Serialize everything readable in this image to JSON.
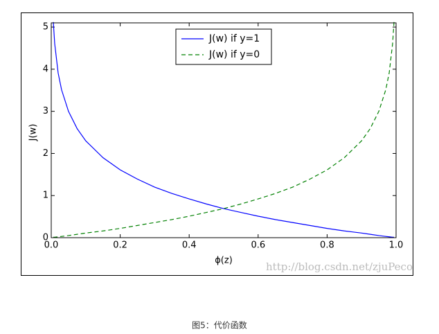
{
  "chart_data": {
    "type": "line",
    "xlabel": "ϕ(z)",
    "ylabel": "J(w)",
    "x": [
      0.006,
      0.01,
      0.02,
      0.03,
      0.05,
      0.075,
      0.1,
      0.15,
      0.2,
      0.25,
      0.3,
      0.35,
      0.4,
      0.45,
      0.5,
      0.55,
      0.6,
      0.65,
      0.7,
      0.75,
      0.8,
      0.85,
      0.9,
      0.925,
      0.95,
      0.97,
      0.98,
      0.99,
      0.994
    ],
    "series": [
      {
        "name": "J(w) if y=1",
        "color": "#0000ff",
        "dash": false,
        "values": [
          5.12,
          4.61,
          3.91,
          3.51,
          3.0,
          2.59,
          2.3,
          1.9,
          1.61,
          1.39,
          1.2,
          1.05,
          0.92,
          0.8,
          0.69,
          0.6,
          0.51,
          0.43,
          0.36,
          0.29,
          0.22,
          0.16,
          0.11,
          0.08,
          0.05,
          0.03,
          0.02,
          0.01,
          0.01
        ]
      },
      {
        "name": "J(w) if y=0",
        "color": "#008000",
        "dash": true,
        "values": [
          0.01,
          0.01,
          0.02,
          0.03,
          0.05,
          0.08,
          0.11,
          0.16,
          0.22,
          0.29,
          0.36,
          0.43,
          0.51,
          0.6,
          0.69,
          0.8,
          0.92,
          1.05,
          1.2,
          1.39,
          1.61,
          1.9,
          2.3,
          2.59,
          3.0,
          3.51,
          3.91,
          4.61,
          5.12
        ]
      }
    ],
    "xlim": [
      0,
      1
    ],
    "ylim": [
      0,
      5.1
    ],
    "xticks": [
      {
        "value": 0,
        "label": "0.0"
      },
      0.2,
      0.4,
      0.6,
      0.8,
      {
        "value": 1,
        "label": "1.0"
      }
    ],
    "yticks": [
      0,
      1,
      2,
      3,
      4,
      5
    ],
    "legend": "upper center",
    "grid": false
  },
  "watermark": "http://blog.csdn.net/zjuPeco",
  "caption": "图5：代价函数"
}
